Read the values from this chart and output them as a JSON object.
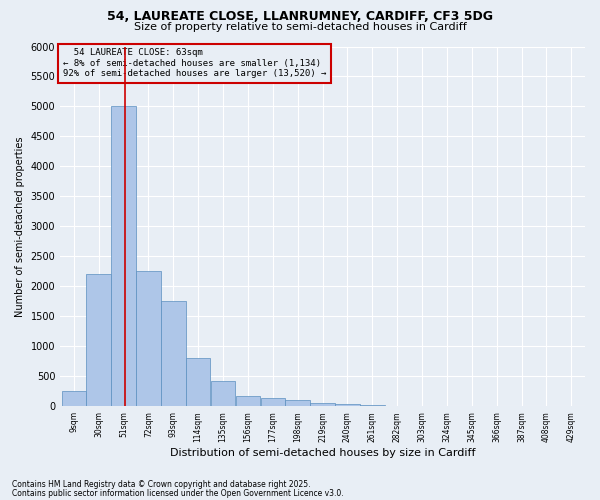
{
  "title": "54, LAUREATE CLOSE, LLANRUMNEY, CARDIFF, CF3 5DG",
  "subtitle": "Size of property relative to semi-detached houses in Cardiff",
  "xlabel": "Distribution of semi-detached houses by size in Cardiff",
  "ylabel": "Number of semi-detached properties",
  "footnote1": "Contains HM Land Registry data © Crown copyright and database right 2025.",
  "footnote2": "Contains public sector information licensed under the Open Government Licence v3.0.",
  "property_label": "54 LAUREATE CLOSE: 63sqm",
  "pct_smaller": "8%",
  "num_smaller": "1,134",
  "pct_larger": "92%",
  "num_larger": "13,520",
  "bin_labels": [
    "9sqm",
    "30sqm",
    "51sqm",
    "72sqm",
    "93sqm",
    "114sqm",
    "135sqm",
    "156sqm",
    "177sqm",
    "198sqm",
    "219sqm",
    "240sqm",
    "261sqm",
    "282sqm",
    "303sqm",
    "324sqm",
    "345sqm",
    "366sqm",
    "387sqm",
    "408sqm",
    "429sqm"
  ],
  "bin_edges": [
    9,
    30,
    51,
    72,
    93,
    114,
    135,
    156,
    177,
    198,
    219,
    240,
    261,
    282,
    303,
    324,
    345,
    366,
    387,
    408,
    429
  ],
  "bar_heights": [
    250,
    2200,
    5000,
    2250,
    1750,
    800,
    420,
    175,
    130,
    100,
    60,
    40,
    20,
    10,
    5,
    5,
    3,
    2,
    1,
    1,
    0
  ],
  "bar_color": "#aec6e8",
  "bar_edgecolor": "#5a8fc0",
  "vline_color": "#cc0000",
  "vline_x": 63,
  "ylim": [
    0,
    6000
  ],
  "yticks": [
    0,
    500,
    1000,
    1500,
    2000,
    2500,
    3000,
    3500,
    4000,
    4500,
    5000,
    5500,
    6000
  ],
  "bg_color": "#e8eef5",
  "grid_color": "#ffffff",
  "annotation_box_color": "#cc0000",
  "title_fontsize": 9,
  "subtitle_fontsize": 8
}
